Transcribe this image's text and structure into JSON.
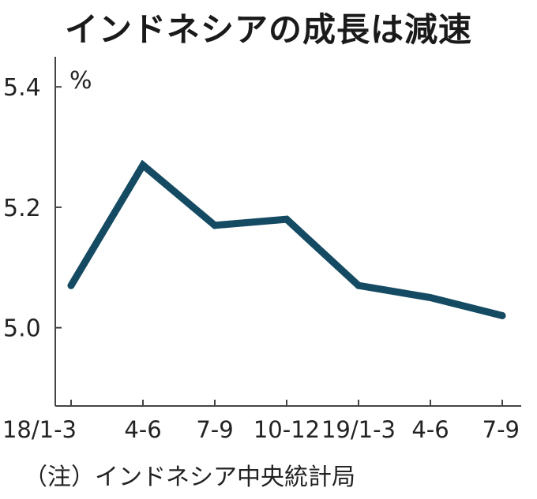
{
  "chart_data": {
    "type": "line",
    "title": "インドネシアの成長は減速",
    "unit": "%",
    "categories": [
      "18/1-3",
      "4-6",
      "7-9",
      "10-12",
      "19/1-3",
      "4-6",
      "7-9"
    ],
    "series": [
      {
        "values": [
          5.07,
          5.27,
          5.17,
          5.18,
          5.07,
          5.05,
          5.02
        ]
      }
    ],
    "yticks": [
      "5.0",
      "5.2",
      "5.4"
    ],
    "ylim": [
      4.87,
      5.45
    ],
    "grid": false,
    "line_color": "#154a63",
    "note": "（注）インドネシア中央統計局"
  }
}
